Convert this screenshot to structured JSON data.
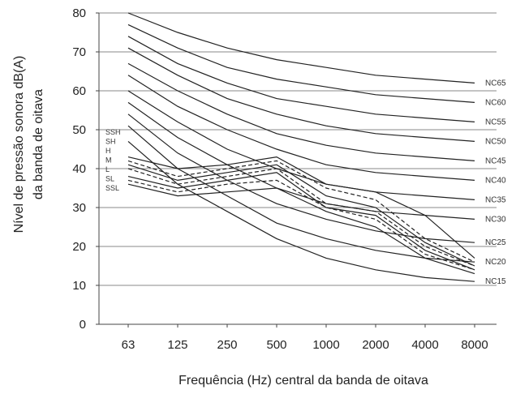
{
  "chart_data": {
    "type": "line",
    "xlabel": "Frequência (Hz) central da banda de oitava",
    "ylabel_line1": "Nível de pressão sonora dB(A)",
    "ylabel_line2": "da banda de oitava",
    "categories": [
      "63",
      "125",
      "250",
      "500",
      "1000",
      "2000",
      "4000",
      "8000"
    ],
    "ylim": [
      0,
      80
    ],
    "yticks": [
      0,
      10,
      20,
      30,
      40,
      50,
      60,
      70,
      80
    ],
    "grid": "horizontal",
    "nc_curves": [
      {
        "name": "NC65",
        "values": [
          80,
          75,
          71,
          68,
          66,
          64,
          63,
          62
        ]
      },
      {
        "name": "NC60",
        "values": [
          77,
          71,
          66,
          63,
          61,
          59,
          58,
          57
        ]
      },
      {
        "name": "NC55",
        "values": [
          74,
          67,
          62,
          58,
          56,
          54,
          53,
          52
        ]
      },
      {
        "name": "NC50",
        "values": [
          71,
          64,
          58,
          54,
          51,
          49,
          48,
          47
        ]
      },
      {
        "name": "NC45",
        "values": [
          67,
          60,
          54,
          49,
          46,
          44,
          43,
          42
        ]
      },
      {
        "name": "NC40",
        "values": [
          64,
          56,
          50,
          45,
          41,
          39,
          38,
          37
        ]
      },
      {
        "name": "NC35",
        "values": [
          60,
          52,
          45,
          40,
          36,
          34,
          33,
          32
        ]
      },
      {
        "name": "NC30",
        "values": [
          57,
          48,
          41,
          35,
          31,
          29,
          28,
          27
        ]
      },
      {
        "name": "NC25",
        "values": [
          54,
          44,
          37,
          31,
          27,
          24,
          22,
          21
        ]
      },
      {
        "name": "NC20",
        "values": [
          51,
          40,
          33,
          26,
          22,
          19,
          17,
          16
        ]
      },
      {
        "name": "NC15",
        "values": [
          47,
          36,
          29,
          22,
          17,
          14,
          12,
          11
        ]
      }
    ],
    "rc_curves": [
      {
        "name": "SSH",
        "dashed": false,
        "values": [
          43,
          40,
          41,
          43,
          36,
          34,
          28,
          17
        ]
      },
      {
        "name": "SH",
        "dashed": true,
        "values": [
          42,
          38,
          40,
          42,
          35,
          32,
          22,
          16
        ]
      },
      {
        "name": "H",
        "dashed": false,
        "values": [
          41,
          37,
          39,
          41,
          33,
          30,
          21,
          15
        ]
      },
      {
        "name": "M",
        "dashed": true,
        "values": [
          40,
          36,
          38,
          40,
          31,
          29,
          20,
          15
        ]
      },
      {
        "name": "L",
        "dashed": false,
        "values": [
          38,
          35,
          37,
          39,
          30,
          28,
          19,
          14
        ]
      },
      {
        "name": "SL",
        "dashed": true,
        "values": [
          37,
          34,
          36,
          37,
          30,
          27,
          18,
          14
        ]
      },
      {
        "name": "SSL",
        "dashed": false,
        "values": [
          36,
          33,
          34,
          35,
          29,
          25,
          17,
          13
        ]
      }
    ]
  }
}
